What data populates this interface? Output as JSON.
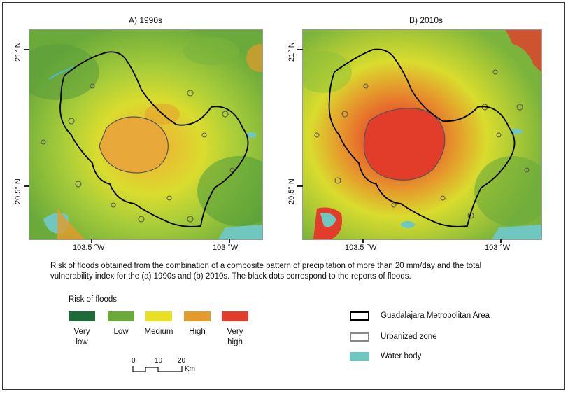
{
  "maps": [
    {
      "title": "A) 1990s",
      "name": "map-1990s"
    },
    {
      "title": "B) 2010s",
      "name": "map-2010s"
    }
  ],
  "axes": {
    "lat_top": "21° N",
    "lat_bottom": "20.5° N",
    "lon_left": "103.5 °W",
    "lon_right": "103 °W"
  },
  "caption": "Risk of floods obtained from the combination of a composite pattern of precipitation of more than 20 mm/day and the total vulnerability index for the (a) 1990s and (b) 2010s. The black dots correspond to the reports of floods.",
  "risk_legend": {
    "title": "Risk of floods",
    "classes": [
      {
        "label": "Very low",
        "color": "#1e6b3a"
      },
      {
        "label": "Low",
        "color": "#6aaa3a"
      },
      {
        "label": "Medium",
        "color": "#e8e021"
      },
      {
        "label": "High",
        "color": "#e59a2c"
      },
      {
        "label": "Very high",
        "color": "#e23c2a"
      }
    ]
  },
  "boundary_legend": [
    {
      "label": "Guadalajara Metropolitan Area",
      "style": "black-outline"
    },
    {
      "label": "Urbanized zone",
      "style": "gray-outline"
    },
    {
      "label": "Water body",
      "color": "#6fc7c0"
    }
  ],
  "scale_bar": {
    "ticks": [
      "0",
      "10",
      "20"
    ],
    "unit": "Km"
  }
}
